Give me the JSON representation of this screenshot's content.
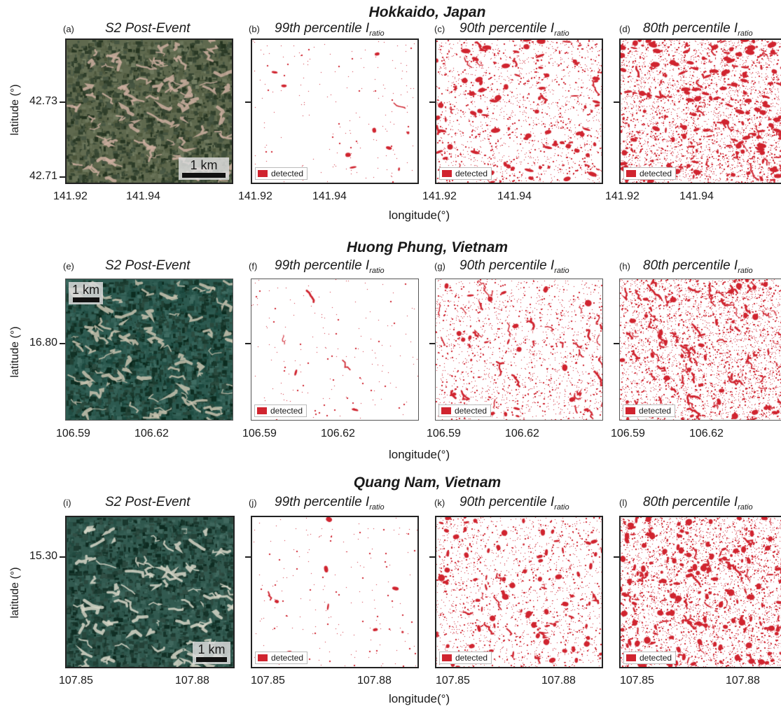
{
  "colors": {
    "detected": "#d0242f",
    "frame": "#222222"
  },
  "axis_labels": {
    "longitude": "longitude(°)",
    "latitude": "latitude (°)"
  },
  "legend_label": "detected",
  "rows": [
    {
      "region": "Hokkaido, Japan",
      "y_tick": "42.73",
      "y_tick2": "42.71",
      "x_ticks": [
        "141.92",
        "141.94"
      ],
      "scale": "1 km",
      "panels": [
        {
          "letter": "(a)",
          "title": "S2 Post-Event"
        },
        {
          "letter": "(b)",
          "title": "99th percentile I",
          "sub": "ratio",
          "density": 0.01
        },
        {
          "letter": "(c)",
          "title": "90th percentile I",
          "sub": "ratio",
          "density": 0.1
        },
        {
          "letter": "(d)",
          "title": "80th percentile I",
          "sub": "ratio",
          "density": 0.2
        }
      ]
    },
    {
      "region": "Huong Phung, Vietnam",
      "y_tick": "16.80",
      "x_ticks": [
        "106.59",
        "106.62"
      ],
      "scale": "1 km",
      "panels": [
        {
          "letter": "(e)",
          "title": "S2 Post-Event"
        },
        {
          "letter": "(f)",
          "title": "99th percentile I",
          "sub": "ratio",
          "density": 0.01
        },
        {
          "letter": "(g)",
          "title": "90th percentile I",
          "sub": "ratio",
          "density": 0.1
        },
        {
          "letter": "(h)",
          "title": "80th percentile I",
          "sub": "ratio",
          "density": 0.2
        }
      ]
    },
    {
      "region": "Quang Nam, Vietnam",
      "y_tick": "15.30",
      "x_ticks": [
        "107.85",
        "107.88"
      ],
      "scale": "1 km",
      "panels": [
        {
          "letter": "(i)",
          "title": "S2 Post-Event"
        },
        {
          "letter": "(j)",
          "title": "99th percentile I",
          "sub": "ratio",
          "density": 0.01
        },
        {
          "letter": "(k)",
          "title": "90th percentile I",
          "sub": "ratio",
          "density": 0.1
        },
        {
          "letter": "(l)",
          "title": "80th percentile I",
          "sub": "ratio",
          "density": 0.2
        }
      ]
    }
  ]
}
